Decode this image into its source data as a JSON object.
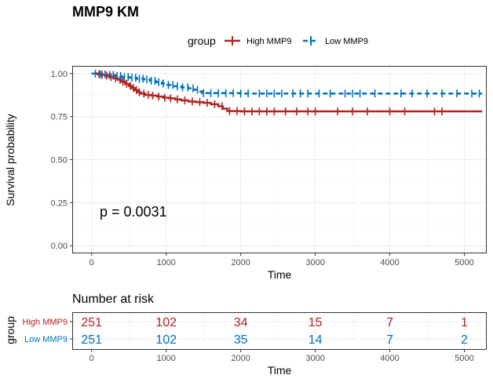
{
  "colors": {
    "high": "#B22222",
    "low": "#0072BD",
    "grid_major": "#EBEBEB",
    "grid_minor": "#F5F5F5",
    "panel_border": "#333333",
    "tick_text": "#4D4D4D"
  },
  "chart_data": [
    {
      "type": "line",
      "chart_style": "kaplan-meier",
      "title": "MMP9 KM",
      "xlabel": "Time",
      "ylabel": "Survival probability",
      "xlim": [
        -250,
        5300
      ],
      "ylim": [
        -0.04,
        1.04
      ],
      "xticks": [
        0,
        1000,
        2000,
        3000,
        4000,
        5000
      ],
      "xtick_labels": [
        "0",
        "1000",
        "2000",
        "3000",
        "4000",
        "5000"
      ],
      "yticks": [
        0,
        0.25,
        0.5,
        0.75,
        1
      ],
      "ytick_labels": [
        "0.00",
        "0.25",
        "0.50",
        "0.75",
        "1.00"
      ],
      "grid": true,
      "legend": {
        "title": "group",
        "position": "top",
        "entries": [
          "High MMP9",
          "Low MMP9"
        ]
      },
      "annotation": "p = 0.0031",
      "series": [
        {
          "name": "High MMP9",
          "color": "#B22222",
          "linestyle": "solid",
          "steps": [
            [
              0,
              1.0
            ],
            [
              80,
              0.996
            ],
            [
              130,
              0.992
            ],
            [
              180,
              0.988
            ],
            [
              230,
              0.98
            ],
            [
              290,
              0.972
            ],
            [
              350,
              0.964
            ],
            [
              400,
              0.952
            ],
            [
              450,
              0.94
            ],
            [
              500,
              0.928
            ],
            [
              540,
              0.916
            ],
            [
              580,
              0.904
            ],
            [
              620,
              0.892
            ],
            [
              660,
              0.884
            ],
            [
              720,
              0.876
            ],
            [
              800,
              0.872
            ],
            [
              880,
              0.866
            ],
            [
              960,
              0.86
            ],
            [
              1040,
              0.856
            ],
            [
              1120,
              0.85
            ],
            [
              1200,
              0.844
            ],
            [
              1300,
              0.838
            ],
            [
              1400,
              0.834
            ],
            [
              1500,
              0.83
            ],
            [
              1600,
              0.822
            ],
            [
              1700,
              0.81
            ],
            [
              1760,
              0.796
            ],
            [
              1820,
              0.782
            ],
            [
              2000,
              0.78
            ],
            [
              2600,
              0.78
            ],
            [
              5240,
              0.78
            ]
          ],
          "censor_times": [
            100,
            140,
            200,
            260,
            320,
            380,
            420,
            470,
            520,
            560,
            600,
            640,
            700,
            760,
            820,
            900,
            980,
            1060,
            1150,
            1250,
            1350,
            1450,
            1550,
            1650,
            1750,
            1850,
            1950,
            2050,
            2150,
            2250,
            2350,
            2450,
            2600,
            2750,
            2900,
            3000,
            3300,
            3500,
            3700,
            4000,
            4200,
            4600,
            4700
          ]
        },
        {
          "name": "Low MMP9",
          "color": "#0072BD",
          "linestyle": "dashed",
          "steps": [
            [
              0,
              1.0
            ],
            [
              100,
              0.996
            ],
            [
              200,
              0.992
            ],
            [
              300,
              0.986
            ],
            [
              400,
              0.98
            ],
            [
              500,
              0.976
            ],
            [
              600,
              0.97
            ],
            [
              700,
              0.966
            ],
            [
              780,
              0.958
            ],
            [
              860,
              0.95
            ],
            [
              940,
              0.942
            ],
            [
              1020,
              0.934
            ],
            [
              1100,
              0.926
            ],
            [
              1200,
              0.92
            ],
            [
              1300,
              0.914
            ],
            [
              1380,
              0.906
            ],
            [
              1440,
              0.896
            ],
            [
              1480,
              0.886
            ],
            [
              2000,
              0.884
            ],
            [
              3000,
              0.884
            ],
            [
              5240,
              0.884
            ]
          ],
          "censor_times": [
            50,
            120,
            180,
            240,
            290,
            340,
            390,
            440,
            490,
            540,
            590,
            640,
            690,
            740,
            800,
            850,
            900,
            960,
            1030,
            1090,
            1150,
            1220,
            1290,
            1360,
            1420,
            1500,
            1600,
            1700,
            1800,
            1900,
            2000,
            2100,
            2250,
            2350,
            2450,
            2550,
            2700,
            2800,
            2900,
            3050,
            3200,
            3400,
            3500,
            3600,
            3800,
            4150,
            4300,
            4500,
            4700,
            4900,
            5100,
            5200
          ]
        }
      ]
    },
    {
      "type": "table",
      "title": "Number at risk",
      "xlabel": "Time",
      "ylabel": "group",
      "xticks": [
        0,
        1000,
        2000,
        3000,
        4000,
        5000
      ],
      "xtick_labels": [
        "0",
        "1000",
        "2000",
        "3000",
        "4000",
        "5000"
      ],
      "rows": [
        {
          "name": "High MMP9",
          "color": "#B22222",
          "values": [
            251,
            102,
            34,
            15,
            7,
            1
          ]
        },
        {
          "name": "Low MMP9",
          "color": "#0072BD",
          "values": [
            251,
            102,
            35,
            14,
            7,
            2
          ]
        }
      ]
    }
  ]
}
